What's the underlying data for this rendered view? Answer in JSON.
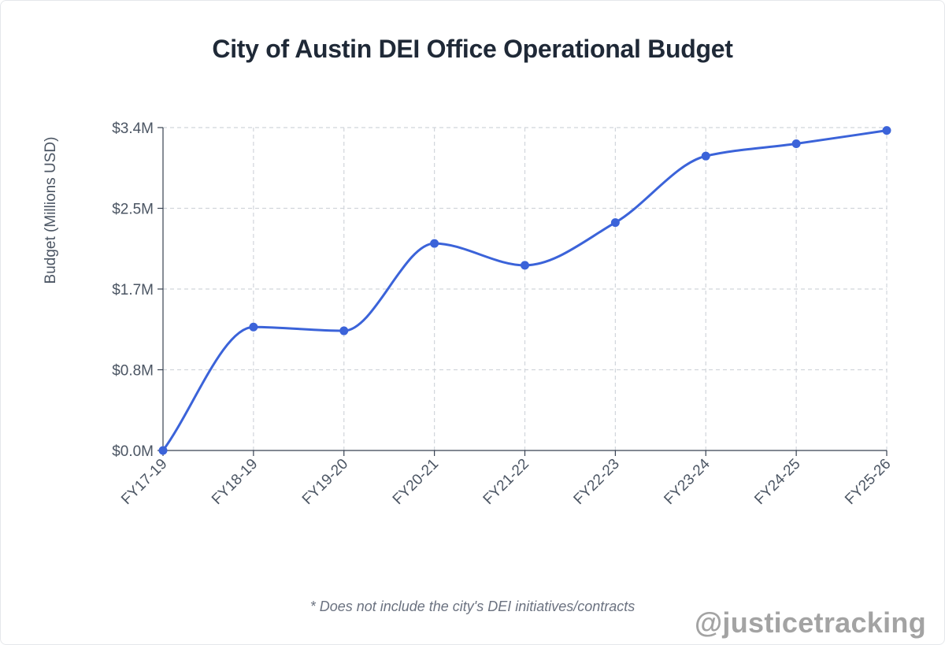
{
  "title": "City of Austin DEI Office Operational Budget",
  "footnote": "* Does not include the city's DEI initiatives/contracts",
  "watermark": "@justicetracking",
  "colors": {
    "line": "#3b63d9",
    "grid": "#d1d5db",
    "axis": "#374151"
  },
  "chart_data": {
    "type": "line",
    "title": "City of Austin DEI Office Operational Budget",
    "ylabel": "Budget (Millions USD)",
    "xlabel": "",
    "categories": [
      "FY17-19",
      "FY18-19",
      "FY19-20",
      "FY20-21",
      "FY21-22",
      "FY22-23",
      "FY23-24",
      "FY24-25",
      "FY25-26"
    ],
    "series": [
      {
        "values": [
          0.0,
          1.3,
          1.26,
          2.18,
          1.95,
          2.4,
          3.1,
          3.23,
          3.37
        ]
      }
    ],
    "ylim": [
      0,
      3.4
    ],
    "yticks": [
      0,
      0.85,
      1.7,
      2.55,
      3.4
    ],
    "ytick_labels": [
      "$0.0M",
      "$0.8M",
      "$1.7M",
      "$2.5M",
      "$3.4M"
    ],
    "grid": true,
    "smooth": true
  }
}
